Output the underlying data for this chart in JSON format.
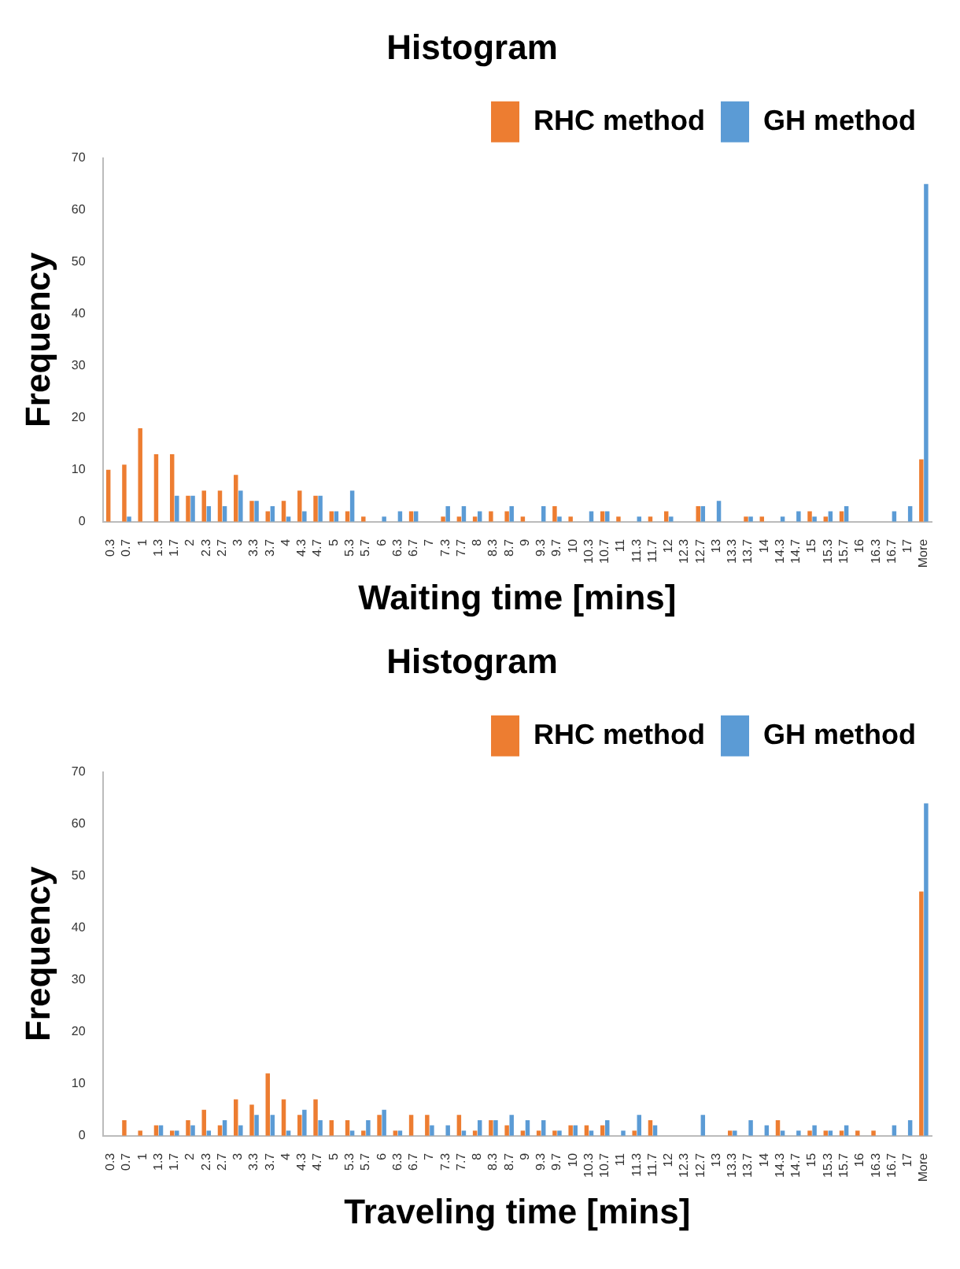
{
  "chart_data": [
    {
      "type": "bar",
      "title": "Histogram",
      "xlabel": "Waiting time [mins]",
      "ylabel": "Frequency",
      "categories": [
        "0.3",
        "0.7",
        "1",
        "1.3",
        "1.7",
        "2",
        "2.3",
        "2.7",
        "3",
        "3.3",
        "3.7",
        "4",
        "4.3",
        "4.7",
        "5",
        "5.3",
        "5.7",
        "6",
        "6.3",
        "6.7",
        "7",
        "7.3",
        "7.7",
        "8",
        "8.3",
        "8.7",
        "9",
        "9.3",
        "9.7",
        "10",
        "10.3",
        "10.7",
        "11",
        "11.3",
        "11.7",
        "12",
        "12.3",
        "12.7",
        "13",
        "13.3",
        "13.7",
        "14",
        "14.3",
        "14.7",
        "15",
        "15.3",
        "15.7",
        "16",
        "16.3",
        "16.7",
        "17",
        "More"
      ],
      "series": [
        {
          "name": "RHC method",
          "color": "#ed7d31",
          "values": [
            10,
            11,
            18,
            13,
            13,
            5,
            6,
            6,
            9,
            4,
            2,
            4,
            6,
            5,
            2,
            2,
            1,
            0,
            0,
            2,
            0,
            1,
            1,
            1,
            2,
            2,
            1,
            0,
            3,
            1,
            0,
            2,
            1,
            0,
            1,
            2,
            0,
            3,
            0,
            0,
            1,
            1,
            0,
            0,
            2,
            1,
            2,
            0,
            0,
            0,
            0,
            12
          ]
        },
        {
          "name": "GH method",
          "color": "#5b9bd5",
          "values": [
            0,
            1,
            0,
            0,
            5,
            5,
            3,
            3,
            6,
            4,
            3,
            1,
            2,
            5,
            2,
            6,
            0,
            1,
            2,
            2,
            0,
            3,
            3,
            2,
            0,
            3,
            0,
            3,
            1,
            0,
            2,
            2,
            0,
            1,
            0,
            1,
            0,
            3,
            4,
            0,
            1,
            0,
            1,
            2,
            1,
            2,
            3,
            0,
            0,
            2,
            3,
            65
          ]
        }
      ],
      "ylim": [
        0,
        70
      ],
      "yticks": [
        0,
        10,
        20,
        30,
        40,
        50,
        60,
        70
      ],
      "grid": false,
      "legend": "top right"
    },
    {
      "type": "bar",
      "title": "Histogram",
      "xlabel": "Traveling time [mins]",
      "ylabel": "Frequency",
      "categories": [
        "0.3",
        "0.7",
        "1",
        "1.3",
        "1.7",
        "2",
        "2.3",
        "2.7",
        "3",
        "3.3",
        "3.7",
        "4",
        "4.3",
        "4.7",
        "5",
        "5.3",
        "5.7",
        "6",
        "6.3",
        "6.7",
        "7",
        "7.3",
        "7.7",
        "8",
        "8.3",
        "8.7",
        "9",
        "9.3",
        "9.7",
        "10",
        "10.3",
        "10.7",
        "11",
        "11.3",
        "11.7",
        "12",
        "12.3",
        "12.7",
        "13",
        "13.3",
        "13.7",
        "14",
        "14.3",
        "14.7",
        "15",
        "15.3",
        "15.7",
        "16",
        "16.3",
        "16.7",
        "17",
        "More"
      ],
      "series": [
        {
          "name": "RHC method",
          "color": "#ed7d31",
          "values": [
            0,
            3,
            1,
            2,
            1,
            3,
            5,
            2,
            7,
            6,
            12,
            7,
            4,
            7,
            3,
            3,
            1,
            4,
            1,
            4,
            4,
            0,
            4,
            1,
            3,
            2,
            1,
            1,
            1,
            2,
            2,
            2,
            0,
            1,
            3,
            0,
            0,
            0,
            0,
            1,
            0,
            0,
            3,
            0,
            1,
            1,
            1,
            1,
            1,
            0,
            0,
            47
          ]
        },
        {
          "name": "GH method",
          "color": "#5b9bd5",
          "values": [
            0,
            0,
            0,
            2,
            1,
            2,
            1,
            3,
            2,
            4,
            4,
            1,
            5,
            3,
            0,
            1,
            3,
            5,
            1,
            0,
            2,
            2,
            1,
            3,
            3,
            4,
            3,
            3,
            1,
            2,
            1,
            3,
            1,
            4,
            2,
            0,
            0,
            4,
            0,
            1,
            3,
            2,
            1,
            1,
            2,
            1,
            2,
            0,
            0,
            2,
            3,
            64
          ]
        }
      ],
      "ylim": [
        0,
        70
      ],
      "yticks": [
        0,
        10,
        20,
        30,
        40,
        50,
        60,
        70
      ],
      "grid": false,
      "legend": "top right"
    }
  ]
}
